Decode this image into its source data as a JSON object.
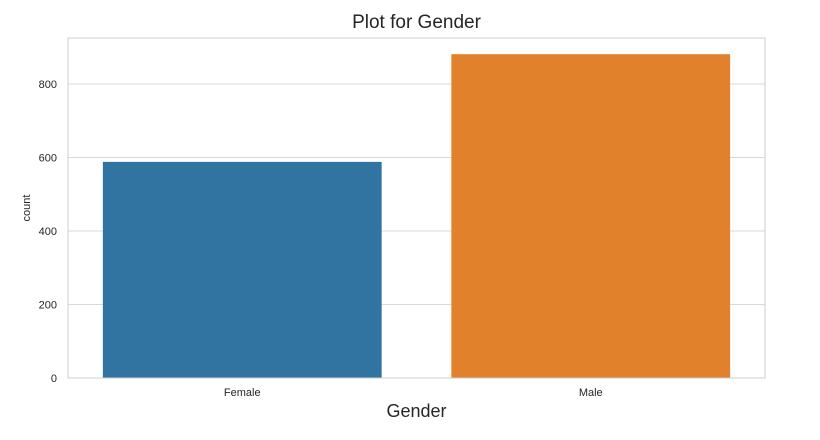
{
  "chart_data": {
    "type": "bar",
    "title": "Plot for Gender",
    "xlabel": "Gender",
    "ylabel": "count",
    "categories": [
      "Female",
      "Male"
    ],
    "values": [
      588,
      881
    ],
    "colors": [
      "#3274a1",
      "#e1812c"
    ],
    "ylim": [
      0,
      925
    ],
    "yticks": [
      0,
      200,
      400,
      600,
      800
    ],
    "grid": true,
    "legend": "none"
  }
}
